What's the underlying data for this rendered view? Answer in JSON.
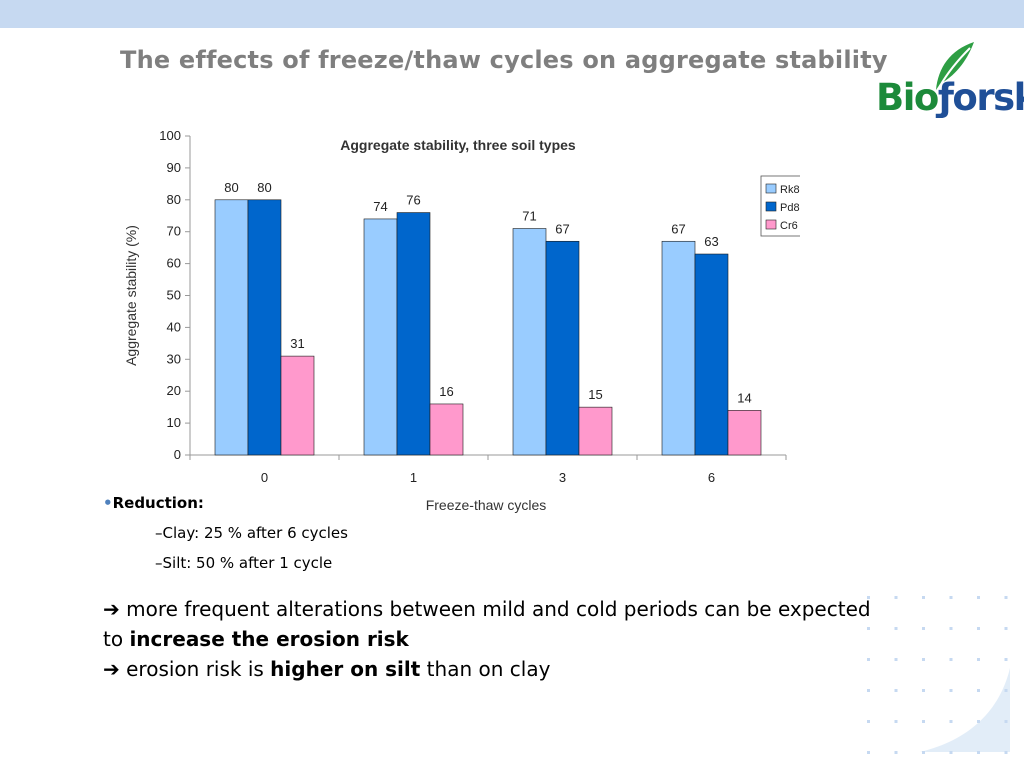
{
  "slide": {
    "title": "The effects of freeze/thaw cycles on aggregate stability",
    "logo": "Bioforsk"
  },
  "colors": {
    "top_band": "#c6d9f1",
    "title": "#7f7f7f",
    "rk8": "#99ccff",
    "pd8": "#0066cc",
    "cr6": "#ff99cc",
    "logo_green": "#1c8a3a",
    "logo_blue": "#1f4f97"
  },
  "chart_data": {
    "type": "bar",
    "title": "Aggregate stability, three soil types",
    "xlabel": "Freeze-thaw cycles",
    "ylabel": "Aggregate stability (%)",
    "categories": [
      "0",
      "1",
      "3",
      "6"
    ],
    "ylim": [
      0,
      100
    ],
    "yticks": [
      0,
      10,
      20,
      30,
      40,
      50,
      60,
      70,
      80,
      90,
      100
    ],
    "grid": false,
    "legend_position": "top-right",
    "series": [
      {
        "name": "Rk8",
        "color": "#99ccff",
        "values": [
          80,
          74,
          71,
          67
        ]
      },
      {
        "name": "Pd8",
        "color": "#0066cc",
        "values": [
          80,
          76,
          67,
          63
        ]
      },
      {
        "name": "Cr6",
        "color": "#ff99cc",
        "values": [
          31,
          16,
          15,
          14
        ]
      }
    ]
  },
  "notes": {
    "bullet_char": "•",
    "heading": "Reduction:",
    "items": [
      "–Clay: 25 % after 6 cycles",
      "–Silt: 50 % after 1 cycle"
    ]
  },
  "conclusion": {
    "arrow": "➔",
    "line1_text": " more frequent alterations between mild and cold periods can be expected to ",
    "line1_bold": "increase the erosion risk",
    "line2_text": " erosion risk is ",
    "line2_bold": "higher on silt",
    "line2_tail": " than on clay"
  }
}
